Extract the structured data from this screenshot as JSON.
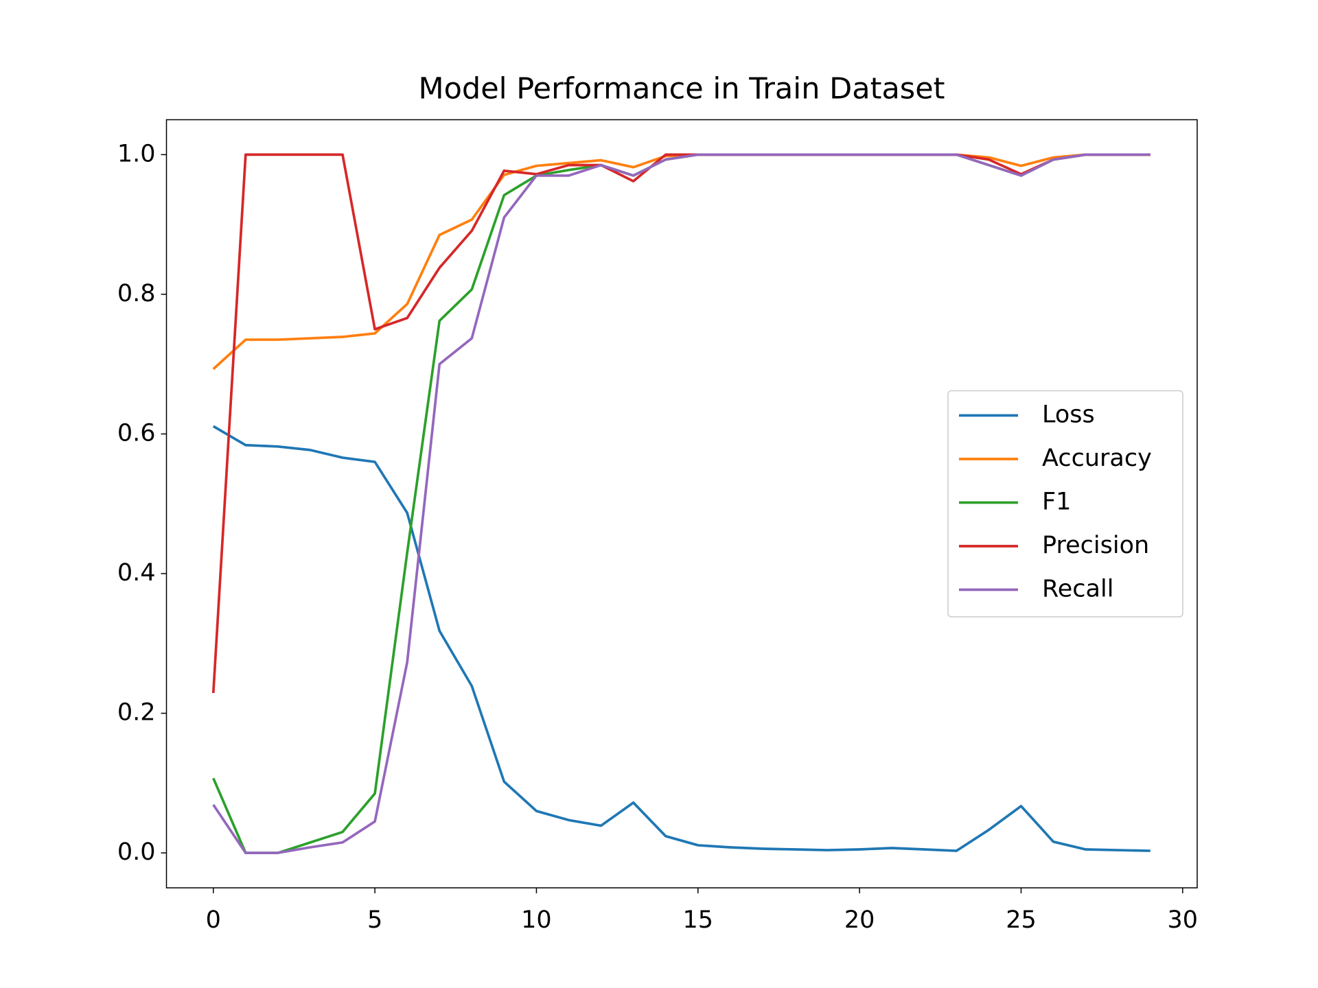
{
  "chart_data": {
    "type": "line",
    "title": "Model Performance in Train Dataset",
    "x": [
      0,
      1,
      2,
      3,
      4,
      5,
      6,
      7,
      8,
      9,
      10,
      11,
      12,
      13,
      14,
      15,
      16,
      17,
      18,
      19,
      20,
      21,
      22,
      23,
      24,
      25,
      26,
      27,
      28,
      29
    ],
    "series": [
      {
        "name": "Loss",
        "color": "#1f77b4",
        "values": [
          0.611,
          0.584,
          0.582,
          0.577,
          0.566,
          0.56,
          0.487,
          0.318,
          0.239,
          0.102,
          0.06,
          0.047,
          0.039,
          0.072,
          0.024,
          0.011,
          0.008,
          0.006,
          0.005,
          0.004,
          0.005,
          0.007,
          0.005,
          0.003,
          0.033,
          0.067,
          0.016,
          0.005,
          0.004,
          0.003
        ]
      },
      {
        "name": "Accuracy",
        "color": "#ff7f0e",
        "values": [
          0.693,
          0.735,
          0.735,
          0.737,
          0.739,
          0.744,
          0.786,
          0.885,
          0.907,
          0.971,
          0.984,
          0.988,
          0.992,
          0.982,
          0.998,
          1.0,
          1.0,
          1.0,
          1.0,
          1.0,
          1.0,
          1.0,
          1.0,
          1.0,
          0.996,
          0.984,
          0.996,
          1.0,
          1.0,
          1.0
        ]
      },
      {
        "name": "F1",
        "color": "#2ca02c",
        "values": [
          0.107,
          0.0,
          0.0,
          0.015,
          0.03,
          0.085,
          0.43,
          0.762,
          0.807,
          0.942,
          0.97,
          0.978,
          0.985,
          0.97,
          0.993,
          1.0,
          1.0,
          1.0,
          1.0,
          1.0,
          1.0,
          1.0,
          1.0,
          1.0,
          0.985,
          0.97,
          0.993,
          1.0,
          1.0,
          1.0
        ]
      },
      {
        "name": "Precision",
        "color": "#d62728",
        "values": [
          0.229,
          1.0,
          1.0,
          1.0,
          1.0,
          0.75,
          0.766,
          0.838,
          0.891,
          0.977,
          0.972,
          0.985,
          0.985,
          0.962,
          1.0,
          1.0,
          1.0,
          1.0,
          1.0,
          1.0,
          1.0,
          1.0,
          1.0,
          1.0,
          0.993,
          0.972,
          0.993,
          1.0,
          1.0,
          1.0
        ]
      },
      {
        "name": "Recall",
        "color": "#9467bd",
        "values": [
          0.069,
          0.0,
          0.0,
          0.008,
          0.015,
          0.045,
          0.273,
          0.7,
          0.737,
          0.91,
          0.97,
          0.97,
          0.985,
          0.97,
          0.993,
          1.0,
          1.0,
          1.0,
          1.0,
          1.0,
          1.0,
          1.0,
          1.0,
          1.0,
          0.985,
          0.97,
          0.993,
          1.0,
          1.0,
          1.0
        ]
      }
    ],
    "xlim": [
      -1.45,
      30.45
    ],
    "ylim": [
      -0.05,
      1.05
    ],
    "xticks": [
      0,
      5,
      10,
      15,
      20,
      25,
      30
    ],
    "yticks": [
      {
        "value": 0,
        "label": "0.0"
      },
      0.2,
      0.4,
      0.6,
      0.8,
      {
        "value": 1,
        "label": "1.0"
      }
    ],
    "legend": "center right",
    "grid": false
  }
}
